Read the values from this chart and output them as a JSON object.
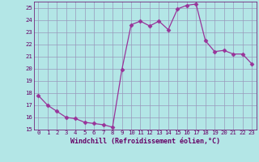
{
  "x": [
    0,
    1,
    2,
    3,
    4,
    5,
    6,
    7,
    8,
    9,
    10,
    11,
    12,
    13,
    14,
    15,
    16,
    17,
    18,
    19,
    20,
    21,
    22,
    23
  ],
  "y": [
    17.8,
    17.0,
    16.5,
    16.0,
    15.9,
    15.6,
    15.5,
    15.4,
    15.2,
    19.9,
    23.6,
    23.9,
    23.5,
    23.9,
    23.2,
    24.9,
    25.2,
    25.3,
    22.3,
    21.4,
    21.5,
    21.2,
    21.2,
    20.4
  ],
  "xlim": [
    -0.5,
    23.5
  ],
  "ylim": [
    15,
    25.5
  ],
  "yticks": [
    15,
    16,
    17,
    18,
    19,
    20,
    21,
    22,
    23,
    24,
    25
  ],
  "xticks": [
    0,
    1,
    2,
    3,
    4,
    5,
    6,
    7,
    8,
    9,
    10,
    11,
    12,
    13,
    14,
    15,
    16,
    17,
    18,
    19,
    20,
    21,
    22,
    23
  ],
  "line_color": "#993399",
  "marker": "D",
  "marker_size": 2.5,
  "bg_color": "#b3e6e6",
  "grid_color": "#9999bb",
  "xlabel": "Windchill (Refroidissement éolien,°C)",
  "xlabel_color": "#660066",
  "tick_color": "#660066",
  "axis_color": "#660066",
  "tick_fontsize": 5.2,
  "xlabel_fontsize": 6.0
}
